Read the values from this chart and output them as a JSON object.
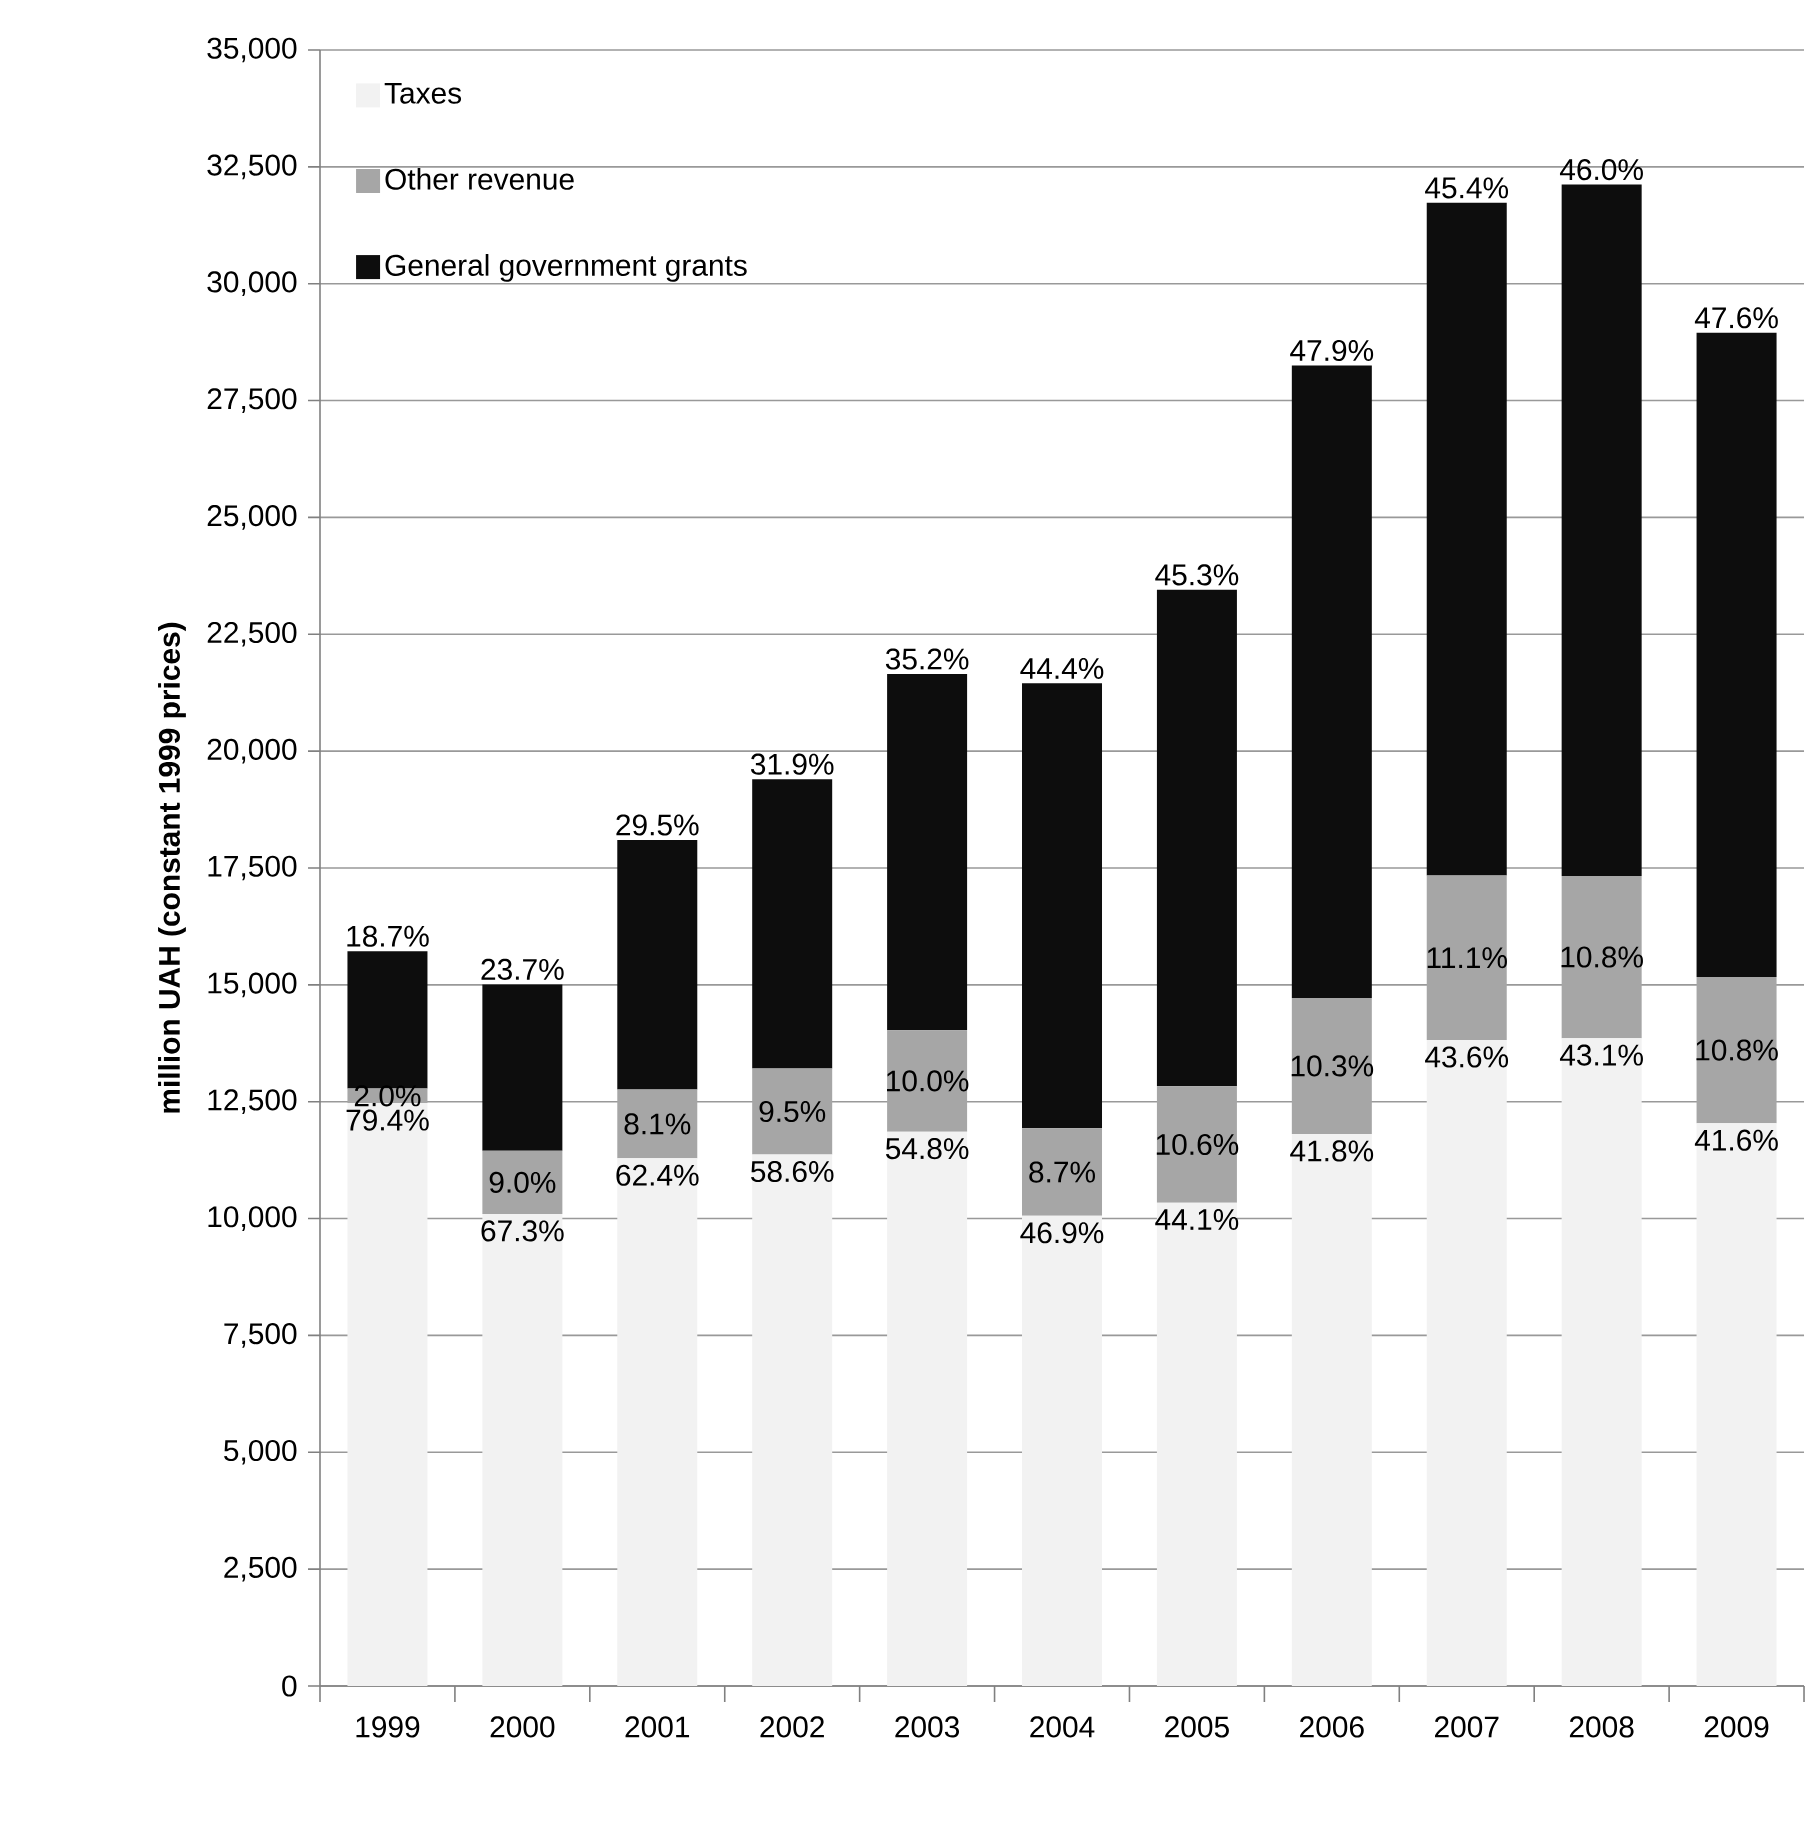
{
  "chart_data": {
    "type": "bar",
    "stacked": true,
    "ylabel": "million UAH (constant 1999 prices)",
    "categories": [
      "1999",
      "2000",
      "2001",
      "2002",
      "2003",
      "2004",
      "2005",
      "2006",
      "2007",
      "2008",
      "2009"
    ],
    "series": [
      {
        "name": "Taxes",
        "color": "#f2f2f2",
        "values": [
          12470,
          10100,
          11290,
          11370,
          11860,
          10060,
          10340,
          11810,
          13820,
          13860,
          12040
        ]
      },
      {
        "name": "Other revenue",
        "color": "#a6a6a6",
        "values": [
          310,
          1350,
          1470,
          1840,
          2170,
          1870,
          2490,
          2910,
          3520,
          3470,
          3130
        ]
      },
      {
        "name": "General government grants",
        "color": "#0d0d0d",
        "values": [
          2940,
          3560,
          5340,
          6190,
          7620,
          9520,
          10620,
          13530,
          14390,
          14790,
          13780
        ]
      }
    ],
    "annotations": [
      {
        "text": "79.4%",
        "x": "1999",
        "y": 12470
      },
      {
        "text": "67.3%",
        "x": "2000",
        "y": 10100
      },
      {
        "text": "62.4%",
        "x": "2001",
        "y": 11290
      },
      {
        "text": "58.6%",
        "x": "2002",
        "y": 11370
      },
      {
        "text": "54.8%",
        "x": "2003",
        "y": 11860
      },
      {
        "text": "46.9%",
        "x": "2004",
        "y": 10060
      },
      {
        "text": "44.1%",
        "x": "2005",
        "y": 10340
      },
      {
        "text": "41.8%",
        "x": "2006",
        "y": 11810
      },
      {
        "text": "43.6%",
        "x": "2007",
        "y": 13820
      },
      {
        "text": "43.1%",
        "x": "2008",
        "y": 13860
      },
      {
        "text": "41.6%",
        "x": "2009",
        "y": 12040
      },
      {
        "text": "2.0%",
        "x": "1999",
        "y": 12780
      },
      {
        "text": "9.0%",
        "x": "2000",
        "y": 11450
      },
      {
        "text": "8.1%",
        "x": "2001",
        "y": 12760
      },
      {
        "text": "9.5%",
        "x": "2002",
        "y": 13210
      },
      {
        "text": "10.0%",
        "x": "2003",
        "y": 14030
      },
      {
        "text": "8.7%",
        "x": "2004",
        "y": 11930
      },
      {
        "text": "10.6%",
        "x": "2005",
        "y": 12830
      },
      {
        "text": "10.3%",
        "x": "2006",
        "y": 14720
      },
      {
        "text": "11.1%",
        "x": "2007",
        "y": 17340
      },
      {
        "text": "10.8%",
        "x": "2008",
        "y": 17330
      },
      {
        "text": "10.8%",
        "x": "2009",
        "y": 15170
      },
      {
        "text": "18.7%",
        "x": "1999",
        "y": 15720
      },
      {
        "text": "23.7%",
        "x": "2000",
        "y": 15010
      },
      {
        "text": "29.5%",
        "x": "2001",
        "y": 18100
      },
      {
        "text": "31.9%",
        "x": "2002",
        "y": 19400
      },
      {
        "text": "35.2%",
        "x": "2003",
        "y": 21650
      },
      {
        "text": "44.4%",
        "x": "2004",
        "y": 21450
      },
      {
        "text": "45.3%",
        "x": "2005",
        "y": 23450
      },
      {
        "text": "47.9%",
        "x": "2006",
        "y": 28250
      },
      {
        "text": "45.4%",
        "x": "2007",
        "y": 31730
      },
      {
        "text": "46.0%",
        "x": "2008",
        "y": 32120
      },
      {
        "text": "47.6%",
        "x": "2009",
        "y": 28950
      }
    ],
    "ylim": [
      0,
      35000
    ],
    "yticks": [
      0,
      {
        "value": 2500,
        "label": "2,500"
      },
      {
        "value": 5000,
        "label": "5,000"
      },
      {
        "value": 7500,
        "label": "7,500"
      },
      {
        "value": 10000,
        "label": "10,000"
      },
      {
        "value": 12500,
        "label": "12,500"
      },
      {
        "value": 15000,
        "label": "15,000"
      },
      {
        "value": 17500,
        "label": "17,500"
      },
      {
        "value": 20000,
        "label": "20,000"
      },
      {
        "value": 22500,
        "label": "22,500"
      },
      {
        "value": 25000,
        "label": "25,000"
      },
      {
        "value": 27500,
        "label": "27,500"
      },
      {
        "value": 30000,
        "label": "30,000"
      },
      {
        "value": 32500,
        "label": "32,500"
      },
      {
        "value": 35000,
        "label": "35,000"
      }
    ],
    "grid": "y",
    "legend": "top left"
  }
}
